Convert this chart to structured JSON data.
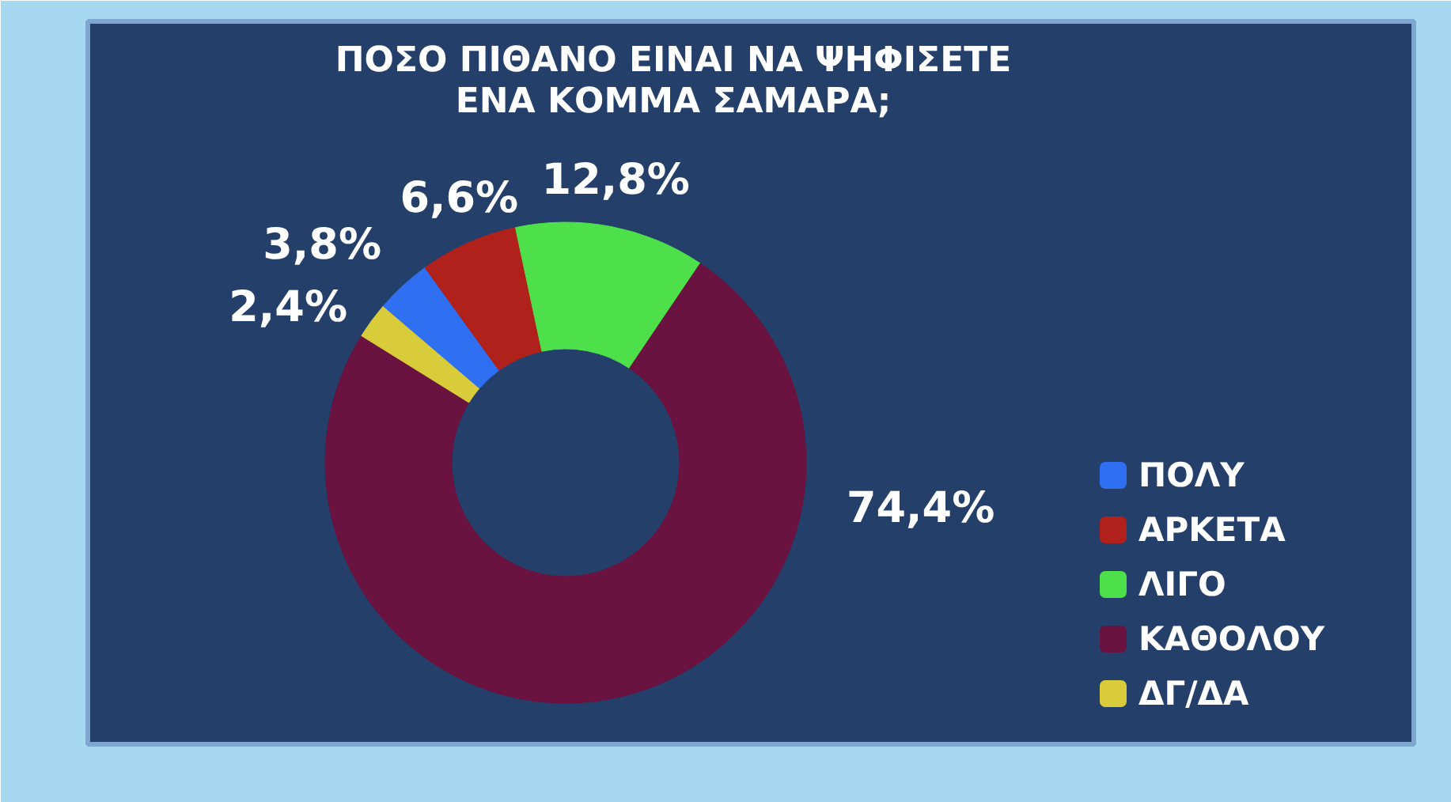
{
  "chart_data": {
    "type": "donut",
    "title": "ΠΟΣΟ ΠΙΘΑΝΟ ΕΙΝΑΙ ΝΑ ΨΗΦΙΣΕΤΕ\nΕΝΑ ΚΟΜΜΑ ΣΑΜΑΡΑ;",
    "categories": [
      "ΠΟΛΥ",
      "ΑΡΚΕΤΑ",
      "ΛΙΓΟ",
      "ΚΑΘΟΛΟΥ",
      "ΔΓ/ΔΑ"
    ],
    "values": [
      3.8,
      6.6,
      12.8,
      74.4,
      2.4
    ],
    "colors": [
      "#2f6ff2",
      "#b0211b",
      "#4de04a",
      "#6a1240",
      "#d8cc3a"
    ],
    "value_labels": [
      "3,8%",
      "6,6%",
      "12,8%",
      "74,4%",
      "2,4%"
    ],
    "legend": "right"
  }
}
